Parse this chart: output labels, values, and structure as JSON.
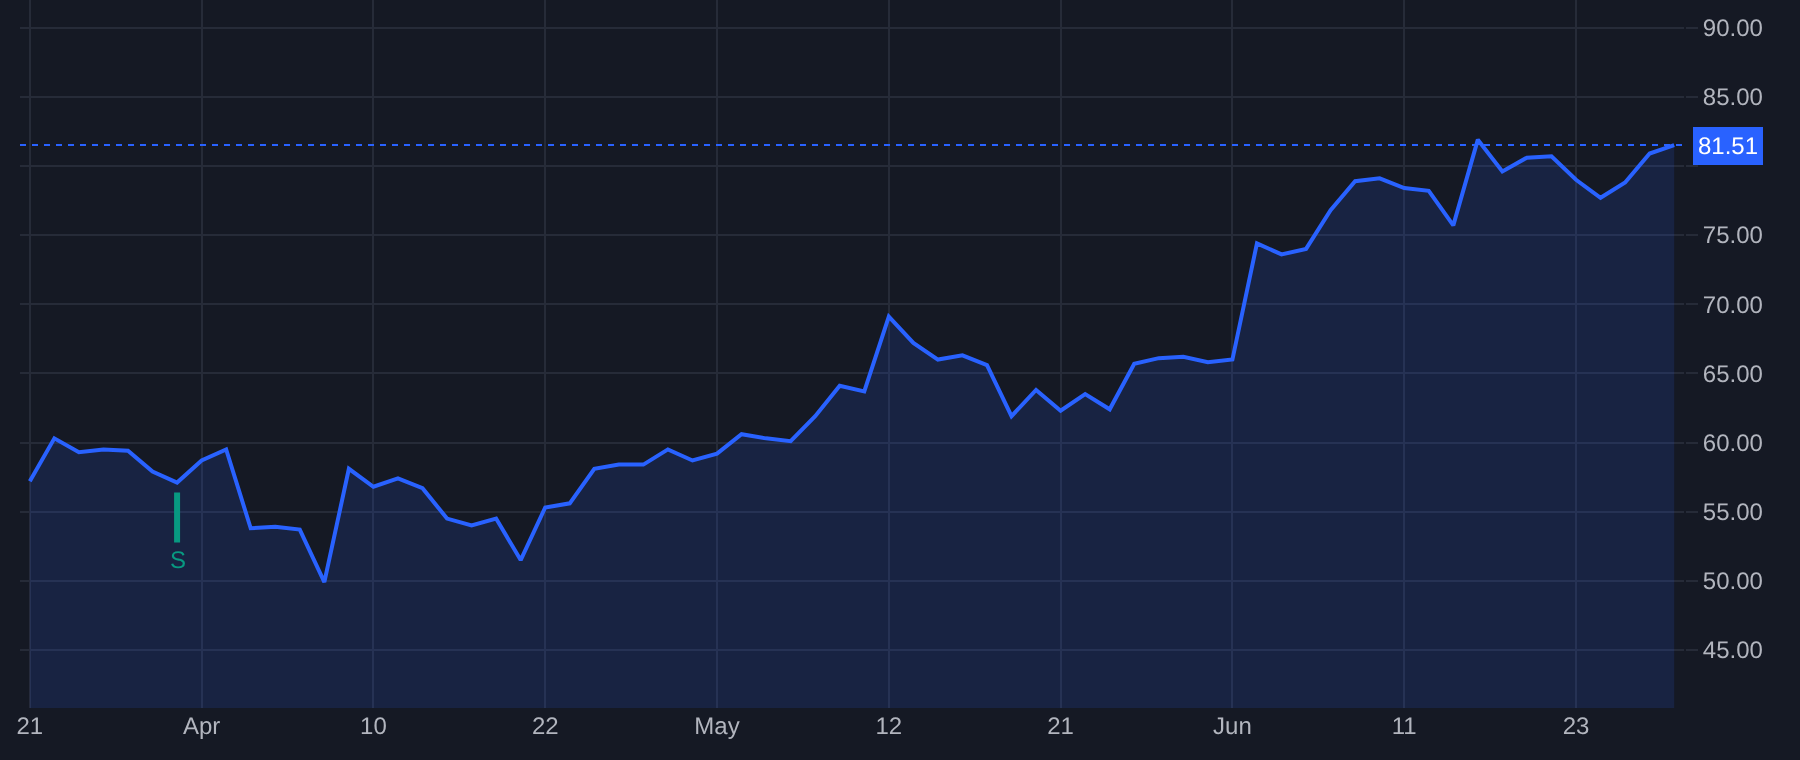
{
  "chart_data": {
    "type": "area",
    "categories": [
      "21",
      null,
      null,
      null,
      null,
      null,
      null,
      "Apr",
      null,
      null,
      null,
      null,
      null,
      null,
      "10",
      null,
      null,
      null,
      null,
      null,
      null,
      "22",
      null,
      null,
      null,
      null,
      null,
      null,
      "May",
      null,
      null,
      null,
      null,
      null,
      null,
      "12",
      null,
      null,
      null,
      null,
      null,
      null,
      "21",
      null,
      null,
      null,
      null,
      null,
      null,
      "Jun",
      null,
      null,
      null,
      null,
      null,
      null,
      "11",
      null,
      null,
      null,
      null,
      null,
      null,
      "23",
      null,
      null,
      null,
      null
    ],
    "series": [
      {
        "color": "#2962ff",
        "values": [
          57.2,
          60.3,
          59.3,
          59.5,
          59.4,
          57.9,
          57.1,
          58.7,
          59.5,
          53.8,
          53.9,
          53.7,
          49.9,
          58.1,
          56.8,
          57.4,
          56.7,
          54.5,
          54.0,
          54.5,
          51.5,
          55.3,
          55.6,
          58.1,
          58.4,
          58.4,
          59.5,
          58.7,
          59.2,
          60.6,
          60.3,
          60.1,
          61.9,
          64.1,
          63.7,
          69.1,
          67.2,
          66.0,
          66.3,
          65.6,
          61.9,
          63.8,
          62.3,
          63.5,
          62.4,
          65.7,
          66.1,
          66.2,
          65.8,
          66.0,
          74.4,
          73.6,
          74.0,
          76.8,
          78.9,
          79.1,
          78.4,
          78.2,
          75.7,
          81.9,
          79.6,
          80.6,
          80.7,
          79.0,
          77.7,
          78.8,
          80.9,
          81.51
        ]
      }
    ],
    "ylim": [
      40.8,
      92
    ],
    "yticks": [
      {
        "value": 45,
        "label": "45.00"
      },
      {
        "value": 50,
        "label": "50.00"
      },
      {
        "value": 55,
        "label": "55.00"
      },
      {
        "value": 60,
        "label": "60.00"
      },
      {
        "value": 65,
        "label": "65.00"
      },
      {
        "value": 70,
        "label": "70.00"
      },
      {
        "value": 75,
        "label": "75.00"
      },
      {
        "value": 80,
        "label": null
      },
      {
        "value": 85,
        "label": "85.00"
      },
      {
        "value": 90,
        "label": "90.00"
      }
    ],
    "ref_lines": [
      {
        "axis": "y",
        "value": 81.51,
        "label": "81.51",
        "color": "#2962ff",
        "line_style": "dotted"
      }
    ],
    "annotations": [
      {
        "text": "S",
        "y": 57.1
      }
    ],
    "grid": true,
    "legend": false
  }
}
